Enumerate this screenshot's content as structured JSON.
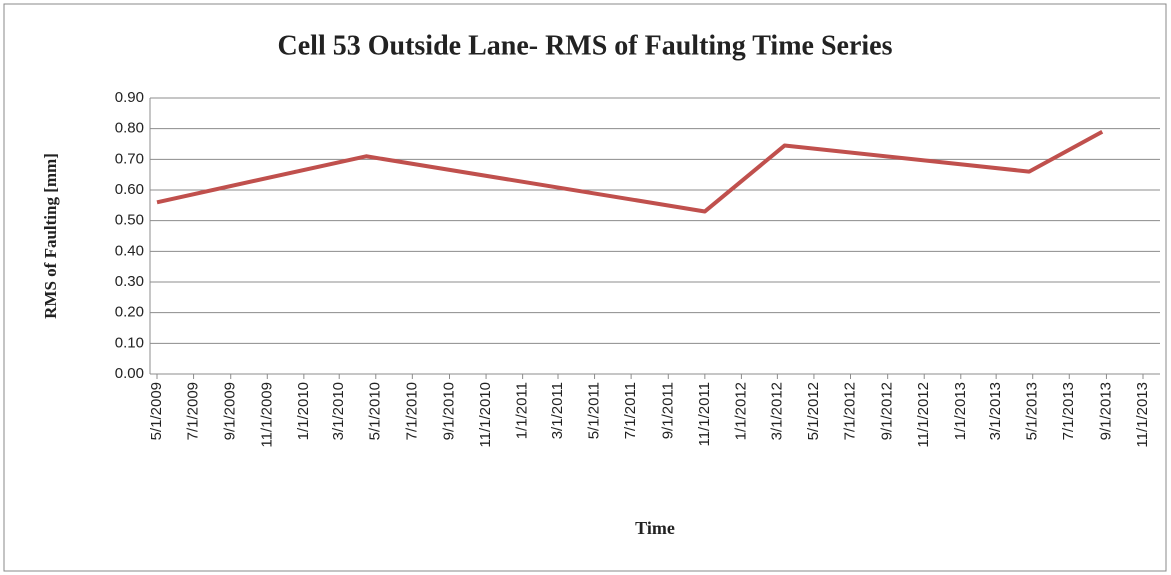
{
  "chart_data": {
    "type": "line",
    "title": "Cell 53 Outside Lane- RMS of Faulting Time Series",
    "x_label": "Time",
    "y_label": "RMS of Faulting [mm]",
    "series": [
      {
        "name": "RMS of Faulting",
        "color": "#c0504d",
        "x": [
          "5/1/2009",
          "4/15/2010",
          "11/1/2011",
          "3/13/2012",
          "4/25/2013",
          "8/25/2013"
        ],
        "values": [
          0.56,
          0.71,
          0.53,
          0.745,
          0.66,
          0.79
        ]
      }
    ],
    "xlim": [
      "5/1/2009",
      "11/1/2013"
    ],
    "xticks": [
      "5/1/2009",
      "7/1/2009",
      "9/1/2009",
      "11/1/2009",
      "1/1/2010",
      "3/1/2010",
      "5/1/2010",
      "7/1/2010",
      "9/1/2010",
      "11/1/2010",
      "1/1/2011",
      "3/1/2011",
      "5/1/2011",
      "7/1/2011",
      "9/1/2011",
      "11/1/2011",
      "1/1/2012",
      "3/1/2012",
      "5/1/2012",
      "7/1/2012",
      "9/1/2012",
      "11/1/2012",
      "1/1/2013",
      "3/1/2013",
      "5/1/2013",
      "7/1/2013",
      "9/1/2013",
      "11/1/2013"
    ],
    "ylim": [
      0,
      0.9
    ],
    "yticks": [
      {
        "value": 0,
        "label": "0.00"
      },
      {
        "value": 0.1,
        "label": "0.10"
      },
      {
        "value": 0.2,
        "label": "0.20"
      },
      {
        "value": 0.3,
        "label": "0.30"
      },
      {
        "value": 0.4,
        "label": "0.40"
      },
      {
        "value": 0.5,
        "label": "0.50"
      },
      {
        "value": 0.6,
        "label": "0.60"
      },
      {
        "value": 0.7,
        "label": "0.70"
      },
      {
        "value": 0.8,
        "label": "0.80"
      },
      {
        "value": 0.9,
        "label": "0.90"
      }
    ],
    "grid": true
  }
}
